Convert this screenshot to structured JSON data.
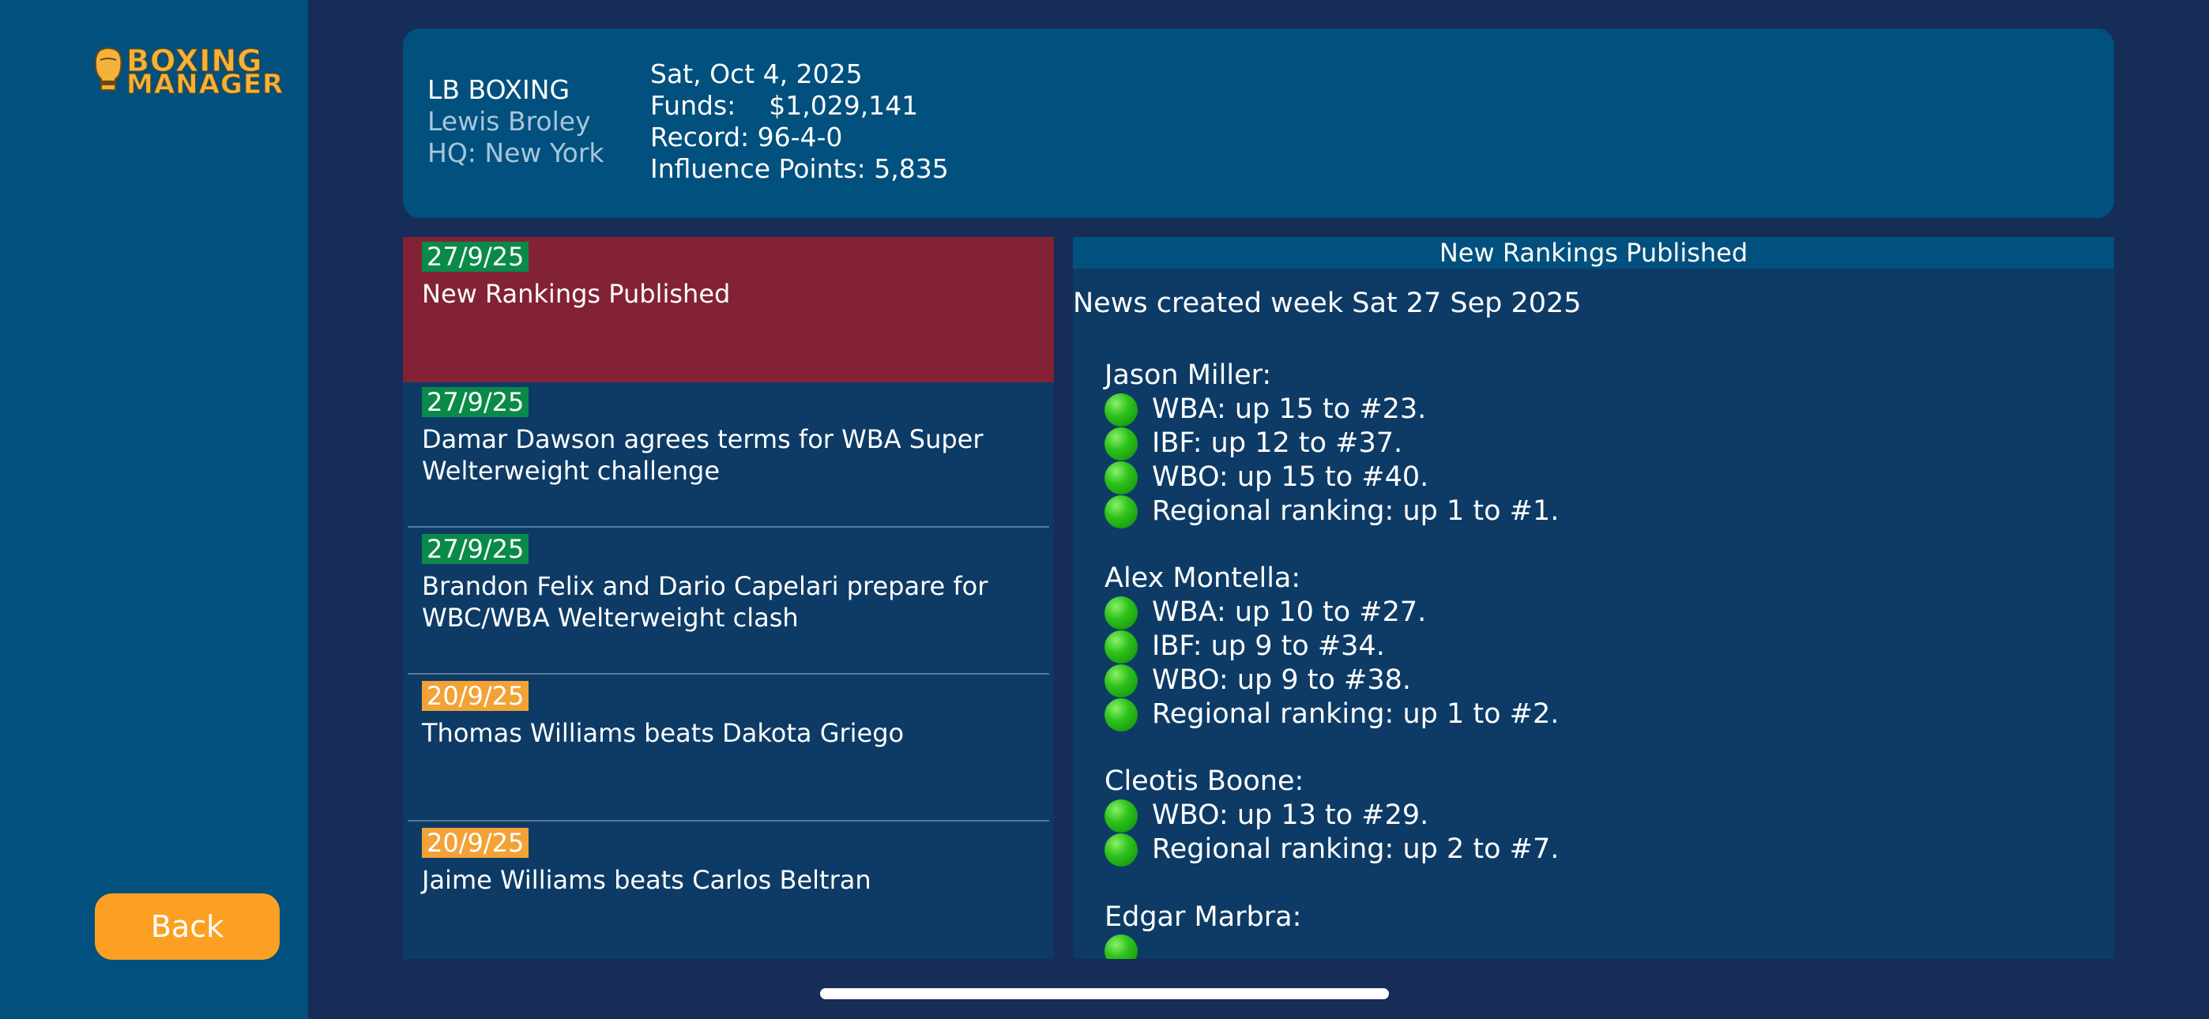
{
  "app": {
    "logo_line1": "BOXING",
    "logo_line2": "MANAGER",
    "back_label": "Back"
  },
  "header": {
    "company_name": "LB BOXING",
    "owner_name": "Lewis Broley",
    "hq": "HQ: New York",
    "date": "Sat, Oct 4, 2025",
    "funds": "Funds:    $1,029,141",
    "record": "Record: 96-4-0",
    "influence": "Influence Points: 5,835"
  },
  "news_list": [
    {
      "date": "27/9/25",
      "headline": "New Rankings Published",
      "badge_color": "#0a8a48",
      "selected": true
    },
    {
      "date": "27/9/25",
      "headline": "Damar Dawson agrees terms for WBA Super Welterweight challenge",
      "badge_color": "#0a8a48",
      "selected": false
    },
    {
      "date": "27/9/25",
      "headline": "Brandon Felix and Dario Capelari prepare for WBC/WBA Welterweight clash",
      "badge_color": "#0a8a48",
      "selected": false
    },
    {
      "date": "20/9/25",
      "headline": "Thomas Williams beats Dakota Griego",
      "badge_color": "#f2a236",
      "selected": false
    },
    {
      "date": "20/9/25",
      "headline": "Jaime Williams beats Carlos Beltran",
      "badge_color": "#f2a236",
      "selected": false
    }
  ],
  "detail": {
    "title": "New Rankings Published",
    "created": "News created week Sat 27 Sep 2025",
    "fighters": [
      {
        "name": "Jason Miller:",
        "lines": [
          "WBA: up 15 to #23.",
          "IBF: up 12 to #37.",
          "WBO: up 15 to #40.",
          "Regional ranking: up 1 to #1."
        ]
      },
      {
        "name": "Alex Montella:",
        "lines": [
          "WBA: up 10 to #27.",
          "IBF: up 9 to #34.",
          "WBO: up 9 to #38.",
          "Regional ranking: up 1 to #2."
        ]
      },
      {
        "name": "Cleotis Boone:",
        "lines": [
          "WBO: up 13 to #29.",
          "Regional ranking: up 2 to #7."
        ]
      },
      {
        "name": "Edgar Marbra:",
        "lines": [
          ""
        ]
      }
    ],
    "indicator_icon": "green-circle-icon",
    "colors": {
      "selected_row": "#832235",
      "recent_badge": "#0a8a48",
      "older_badge": "#f2a236"
    }
  }
}
